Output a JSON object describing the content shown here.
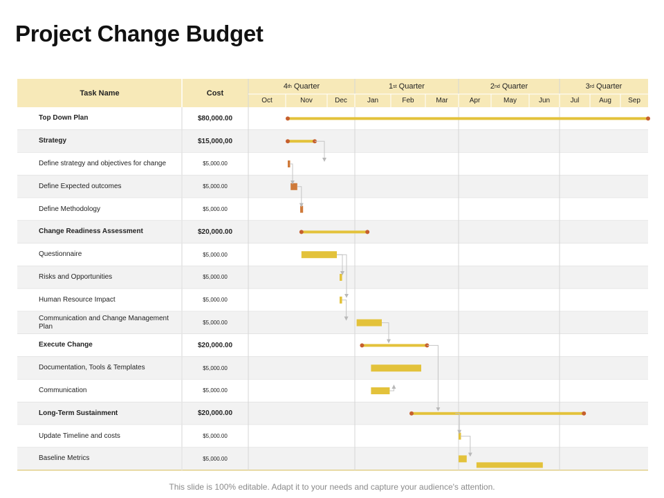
{
  "title": "Project Change Budget",
  "header": {
    "task_name": "Task Name",
    "cost": "Cost",
    "quarters": [
      {
        "num": "4",
        "sup": "th",
        "label": "Quarter"
      },
      {
        "num": "1",
        "sup": "st",
        "label": "Quarter"
      },
      {
        "num": "2",
        "sup": "nd",
        "label": "Quarter"
      },
      {
        "num": "3",
        "sup": "rd",
        "label": "Quarter"
      }
    ],
    "months": [
      "Oct",
      "Nov",
      "Dec",
      "Jan",
      "Feb",
      "Mar",
      "Apr",
      "May",
      "Jun",
      "Jul",
      "Aug",
      "Sep"
    ]
  },
  "tasks": [
    {
      "name": "Top Down Plan",
      "cost": "$80,000.00",
      "summary": true,
      "bar": {
        "start": 1.05,
        "end": 12.0
      }
    },
    {
      "name": "Strategy",
      "cost": "$15,000,00",
      "summary": true,
      "bar": {
        "start": 1.05,
        "end": 1.7
      }
    },
    {
      "name": "Define strategy and objectives for change",
      "cost": "$5,000.00",
      "summary": false,
      "bar": {
        "start": 1.05,
        "end": 1.1
      }
    },
    {
      "name": "Define Expected outcomes",
      "cost": "$5,000.00",
      "summary": false,
      "bar": {
        "start": 1.12,
        "end": 1.28
      }
    },
    {
      "name": "Define Methodology",
      "cost": "$5,000.00",
      "summary": false,
      "bar": {
        "start": 1.35,
        "end": 1.42
      }
    },
    {
      "name": "Change Readiness Assessment",
      "cost": "$20,000.00",
      "summary": true,
      "bar": {
        "start": 1.38,
        "end": 3.35
      }
    },
    {
      "name": "Questionnaire",
      "cost": "$5,000.00",
      "summary": false,
      "bar": {
        "start": 1.38,
        "end": 2.35
      }
    },
    {
      "name": "Risks and Opportunities",
      "cost": "$5,000.00",
      "summary": false,
      "bar": {
        "start": 2.45,
        "end": 2.54
      }
    },
    {
      "name": "Human Resource Impact",
      "cost": "$5,000.00",
      "summary": false,
      "bar": {
        "start": 2.45,
        "end": 2.54
      }
    },
    {
      "name": "Communication and Change Management Plan",
      "cost": "$5,000.00",
      "summary": false,
      "bar": {
        "start": 3.05,
        "end": 3.75
      }
    },
    {
      "name": "Execute Change",
      "cost": "$20,000.00",
      "summary": true,
      "bar": {
        "start": 3.2,
        "end": 5.05
      }
    },
    {
      "name": "Documentation, Tools & Templates",
      "cost": "$5,000.00",
      "summary": false,
      "bar": {
        "start": 3.45,
        "end": 4.88
      }
    },
    {
      "name": "Communication",
      "cost": "$5,000.00",
      "summary": false,
      "bar": {
        "start": 3.45,
        "end": 3.97
      }
    },
    {
      "name": "Long-Term Sustainment",
      "cost": "$20,000.00",
      "summary": true,
      "bar": {
        "start": 4.6,
        "end": 9.8
      }
    },
    {
      "name": "Update Timeline and costs",
      "cost": "$5,000.00",
      "summary": false,
      "bar": {
        "start": 6.0,
        "end": 6.06
      }
    },
    {
      "name": "Baseline Metrics",
      "cost": "$5,000.00",
      "summary": false,
      "bar": {
        "start": 6.0,
        "end": 6.25
      }
    }
  ],
  "extra_bar": {
    "row": 15,
    "start": 6.55,
    "end": 8.45
  },
  "footer": "This slide is 100% editable. Adapt it to your needs and capture your audience's attention.",
  "colors": {
    "header_bg": "#f7e9b8",
    "row_alt": "#f2f2f2",
    "bar_gold": "#e3c23b",
    "bar_orange": "#cf7a3a",
    "milestone": "#c65f2e",
    "grid_line": "#d6d6d6"
  }
}
